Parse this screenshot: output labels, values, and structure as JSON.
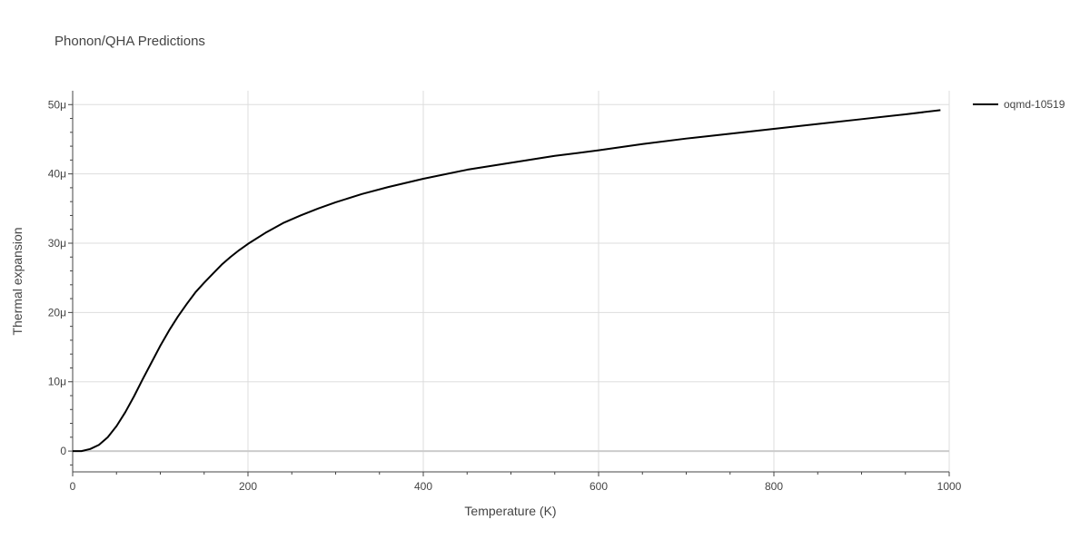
{
  "chart_data": {
    "type": "line",
    "title": "Phonon/QHA Predictions",
    "xlabel": "Temperature (K)",
    "ylabel": "Thermal expansion",
    "xlim": [
      0,
      1000
    ],
    "ylim": [
      -3e-06,
      5.2e-05
    ],
    "x_ticks": [
      {
        "value": 0,
        "label": "0"
      },
      {
        "value": 200,
        "label": "200"
      },
      {
        "value": 400,
        "label": "400"
      },
      {
        "value": 600,
        "label": "600"
      },
      {
        "value": 800,
        "label": "800"
      },
      {
        "value": 1000,
        "label": "1000"
      }
    ],
    "y_ticks": [
      {
        "value": 0,
        "label": "0"
      },
      {
        "value": 1e-05,
        "label": "10μ"
      },
      {
        "value": 2e-05,
        "label": "20μ"
      },
      {
        "value": 3e-05,
        "label": "30μ"
      },
      {
        "value": 4e-05,
        "label": "40μ"
      },
      {
        "value": 5e-05,
        "label": "50μ"
      }
    ],
    "grid": true,
    "legend_position": "top-right outside",
    "series": [
      {
        "name": "oqmd-10519",
        "color": "#000000",
        "points": [
          [
            0,
            0
          ],
          [
            10,
            0.0
          ],
          [
            20,
            3e-07
          ],
          [
            30,
            9e-07
          ],
          [
            40,
            2e-06
          ],
          [
            50,
            3.6e-06
          ],
          [
            60,
            5.6e-06
          ],
          [
            70,
            7.9e-06
          ],
          [
            80,
            1.04e-05
          ],
          [
            90,
            1.28e-05
          ],
          [
            100,
            1.52e-05
          ],
          [
            110,
            1.74e-05
          ],
          [
            120,
            1.94e-05
          ],
          [
            130,
            2.12e-05
          ],
          [
            140,
            2.29e-05
          ],
          [
            150,
            2.43e-05
          ],
          [
            160,
            2.56e-05
          ],
          [
            170,
            2.69e-05
          ],
          [
            180,
            2.8e-05
          ],
          [
            190,
            2.9e-05
          ],
          [
            200,
            2.99e-05
          ],
          [
            220,
            3.15e-05
          ],
          [
            240,
            3.29e-05
          ],
          [
            260,
            3.4e-05
          ],
          [
            280,
            3.5e-05
          ],
          [
            300,
            3.59e-05
          ],
          [
            330,
            3.71e-05
          ],
          [
            360,
            3.81e-05
          ],
          [
            400,
            3.93e-05
          ],
          [
            450,
            4.06e-05
          ],
          [
            500,
            4.16e-05
          ],
          [
            550,
            4.26e-05
          ],
          [
            600,
            4.34e-05
          ],
          [
            650,
            4.43e-05
          ],
          [
            700,
            4.51e-05
          ],
          [
            750,
            4.58e-05
          ],
          [
            800,
            4.65e-05
          ],
          [
            850,
            4.72e-05
          ],
          [
            900,
            4.79e-05
          ],
          [
            950,
            4.86e-05
          ],
          [
            990,
            4.92e-05
          ]
        ]
      }
    ]
  }
}
